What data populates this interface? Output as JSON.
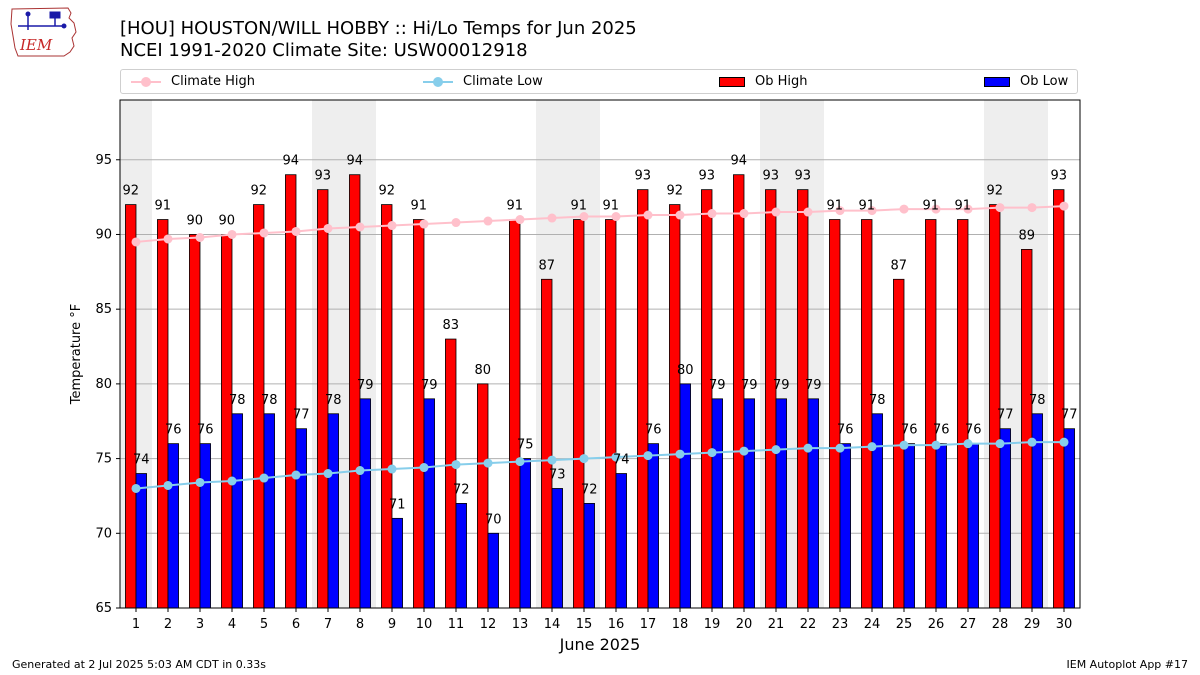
{
  "header": {
    "title_line1": "[HOU] HOUSTON/WILL HOBBY :: Hi/Lo Temps for Jun 2025",
    "title_line2": "NCEI 1991-2020 Climate Site: USW00012918",
    "logo_text": "IEM"
  },
  "legend": {
    "climate_high": "Climate High",
    "climate_low": "Climate Low",
    "ob_high": "Ob High",
    "ob_low": "Ob Low"
  },
  "footer": {
    "generated": "Generated at 2 Jul 2025 5:03 AM CDT in 0.33s",
    "app": "IEM Autoplot App #17"
  },
  "colors": {
    "ob_high": "#ff0000",
    "ob_low": "#0000ff",
    "climate_high": "#ffc0cb",
    "climate_low": "#87ceeb",
    "weekend_band": "#eeeeee",
    "grid": "#b0b0b0"
  },
  "chart_data": {
    "type": "bar",
    "xlabel": "June 2025",
    "ylabel": "Temperature °F",
    "ylim": [
      65,
      99
    ],
    "yticks": [
      65,
      70,
      75,
      80,
      85,
      90,
      95
    ],
    "grid": "horizontal",
    "legend_position": "top",
    "weekend_days": [
      1,
      7,
      8,
      14,
      15,
      21,
      22,
      28,
      29
    ],
    "categories": [
      1,
      2,
      3,
      4,
      5,
      6,
      7,
      8,
      9,
      10,
      11,
      12,
      13,
      14,
      15,
      16,
      17,
      18,
      19,
      20,
      21,
      22,
      23,
      24,
      25,
      26,
      27,
      28,
      29,
      30
    ],
    "series": [
      {
        "name": "Ob High",
        "kind": "bar",
        "values": [
          92,
          91,
          90,
          90,
          92,
          94,
          93,
          94,
          92,
          91,
          83,
          80,
          91,
          87,
          91,
          91,
          93,
          92,
          93,
          94,
          93,
          93,
          91,
          91,
          87,
          91,
          91,
          92,
          89,
          93
        ]
      },
      {
        "name": "Ob Low",
        "kind": "bar",
        "values": [
          74,
          76,
          76,
          78,
          78,
          77,
          78,
          79,
          71,
          79,
          72,
          70,
          75,
          73,
          72,
          74,
          76,
          80,
          79,
          79,
          79,
          79,
          76,
          78,
          76,
          76,
          76,
          77,
          78,
          77
        ]
      },
      {
        "name": "Climate High",
        "kind": "line",
        "values": [
          89.5,
          89.7,
          89.8,
          90.0,
          90.1,
          90.2,
          90.4,
          90.5,
          90.6,
          90.7,
          90.8,
          90.9,
          91.0,
          91.1,
          91.2,
          91.2,
          91.3,
          91.3,
          91.4,
          91.4,
          91.5,
          91.5,
          91.6,
          91.6,
          91.7,
          91.7,
          91.7,
          91.8,
          91.8,
          91.9
        ]
      },
      {
        "name": "Climate Low",
        "kind": "line",
        "values": [
          73.0,
          73.2,
          73.4,
          73.5,
          73.7,
          73.9,
          74.0,
          74.2,
          74.3,
          74.4,
          74.6,
          74.7,
          74.8,
          74.9,
          75.0,
          75.1,
          75.2,
          75.3,
          75.4,
          75.5,
          75.6,
          75.7,
          75.7,
          75.8,
          75.9,
          75.9,
          76.0,
          76.0,
          76.1,
          76.1
        ]
      }
    ]
  }
}
